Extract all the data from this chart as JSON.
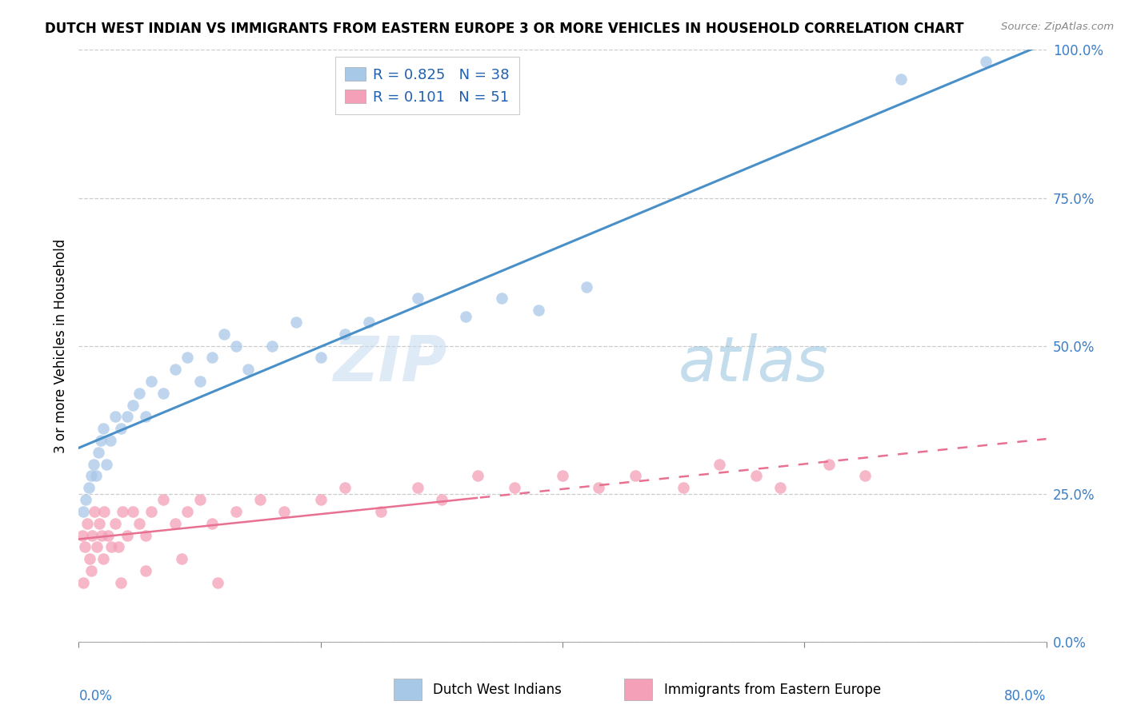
{
  "title": "DUTCH WEST INDIAN VS IMMIGRANTS FROM EASTERN EUROPE 3 OR MORE VEHICLES IN HOUSEHOLD CORRELATION CHART",
  "source": "Source: ZipAtlas.com",
  "ylabel": "3 or more Vehicles in Household",
  "legend_label1": "Dutch West Indians",
  "legend_label2": "Immigrants from Eastern Europe",
  "R1": 0.825,
  "N1": 38,
  "R2": 0.101,
  "N2": 51,
  "color_blue": "#a8c8e8",
  "color_pink": "#f4a0b8",
  "line_blue": "#4a90c8",
  "line_pink": "#e87090",
  "watermark_zip": "ZIP",
  "watermark_atlas": "atlas",
  "blue_x": [
    0.4,
    0.6,
    0.8,
    1.0,
    1.2,
    1.4,
    1.6,
    1.8,
    2.0,
    2.3,
    2.6,
    3.0,
    3.5,
    4.0,
    4.5,
    5.0,
    5.5,
    6.0,
    7.0,
    8.0,
    9.0,
    10.0,
    11.0,
    12.0,
    13.0,
    14.0,
    16.0,
    18.0,
    20.0,
    22.0,
    24.0,
    28.0,
    32.0,
    35.0,
    38.0,
    42.0,
    68.0,
    75.0
  ],
  "blue_y": [
    22.0,
    24.0,
    26.0,
    28.0,
    30.0,
    28.0,
    32.0,
    34.0,
    36.0,
    30.0,
    34.0,
    38.0,
    36.0,
    38.0,
    40.0,
    42.0,
    38.0,
    44.0,
    42.0,
    46.0,
    48.0,
    44.0,
    48.0,
    52.0,
    50.0,
    46.0,
    50.0,
    54.0,
    48.0,
    52.0,
    54.0,
    58.0,
    55.0,
    58.0,
    56.0,
    60.0,
    95.0,
    98.0
  ],
  "pink_x": [
    0.3,
    0.5,
    0.7,
    0.9,
    1.1,
    1.3,
    1.5,
    1.7,
    1.9,
    2.1,
    2.4,
    2.7,
    3.0,
    3.3,
    3.6,
    4.0,
    4.5,
    5.0,
    5.5,
    6.0,
    7.0,
    8.0,
    9.0,
    10.0,
    11.0,
    13.0,
    15.0,
    17.0,
    20.0,
    22.0,
    25.0,
    28.0,
    30.0,
    33.0,
    36.0,
    40.0,
    43.0,
    46.0,
    50.0,
    53.0,
    56.0,
    58.0,
    62.0,
    65.0,
    0.4,
    1.0,
    2.0,
    3.5,
    5.5,
    8.5,
    11.5
  ],
  "pink_y": [
    18.0,
    16.0,
    20.0,
    14.0,
    18.0,
    22.0,
    16.0,
    20.0,
    18.0,
    22.0,
    18.0,
    16.0,
    20.0,
    16.0,
    22.0,
    18.0,
    22.0,
    20.0,
    18.0,
    22.0,
    24.0,
    20.0,
    22.0,
    24.0,
    20.0,
    22.0,
    24.0,
    22.0,
    24.0,
    26.0,
    22.0,
    26.0,
    24.0,
    28.0,
    26.0,
    28.0,
    26.0,
    28.0,
    26.0,
    30.0,
    28.0,
    26.0,
    30.0,
    28.0,
    10.0,
    12.0,
    14.0,
    10.0,
    12.0,
    14.0,
    10.0
  ],
  "xlim": [
    0.0,
    80.0
  ],
  "ylim": [
    0.0,
    100.0
  ],
  "ytick_vals": [
    0,
    25,
    50,
    75,
    100
  ],
  "xtick_vals": [
    0,
    20,
    40,
    60,
    80
  ]
}
